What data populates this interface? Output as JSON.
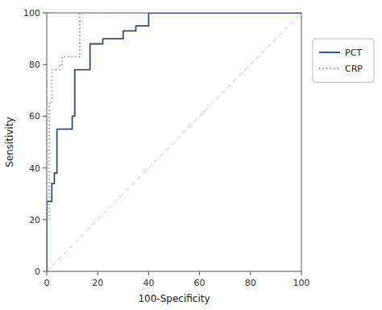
{
  "chart_data": {
    "type": "line",
    "xlabel": "100-Specificity",
    "ylabel": "Sensitivity",
    "xlim": [
      0,
      100
    ],
    "ylim": [
      0,
      100
    ],
    "xticks": [
      0,
      20,
      40,
      60,
      80,
      100
    ],
    "yticks": [
      0,
      20,
      40,
      60,
      80,
      100
    ],
    "grid": false,
    "legend": "right",
    "series": [
      {
        "name": "PCT",
        "color": "#354f7a",
        "line_style": "solid",
        "x": [
          0,
          0,
          2,
          2,
          3,
          3,
          4,
          4,
          10,
          10,
          11,
          11,
          17,
          17,
          22,
          22,
          30,
          30,
          35,
          35,
          40,
          40,
          45,
          45,
          100
        ],
        "values": [
          0,
          27,
          27,
          34,
          34,
          38,
          38,
          55,
          55,
          60,
          60,
          78,
          78,
          88,
          88,
          90,
          90,
          93,
          93,
          95,
          95,
          100,
          100,
          100,
          100
        ]
      },
      {
        "name": "CRP",
        "color": "#999999",
        "line_style": "dotted",
        "x": [
          0,
          0,
          1,
          1,
          2,
          2,
          5,
          5,
          6,
          6,
          13,
          13,
          100
        ],
        "values": [
          0,
          20,
          20,
          65,
          65,
          78,
          78,
          80,
          80,
          83,
          83,
          100,
          100
        ]
      },
      {
        "color": "#c0c0c0",
        "line_style": "dashed",
        "x": [
          0,
          100
        ],
        "values": [
          0,
          100
        ]
      }
    ]
  }
}
